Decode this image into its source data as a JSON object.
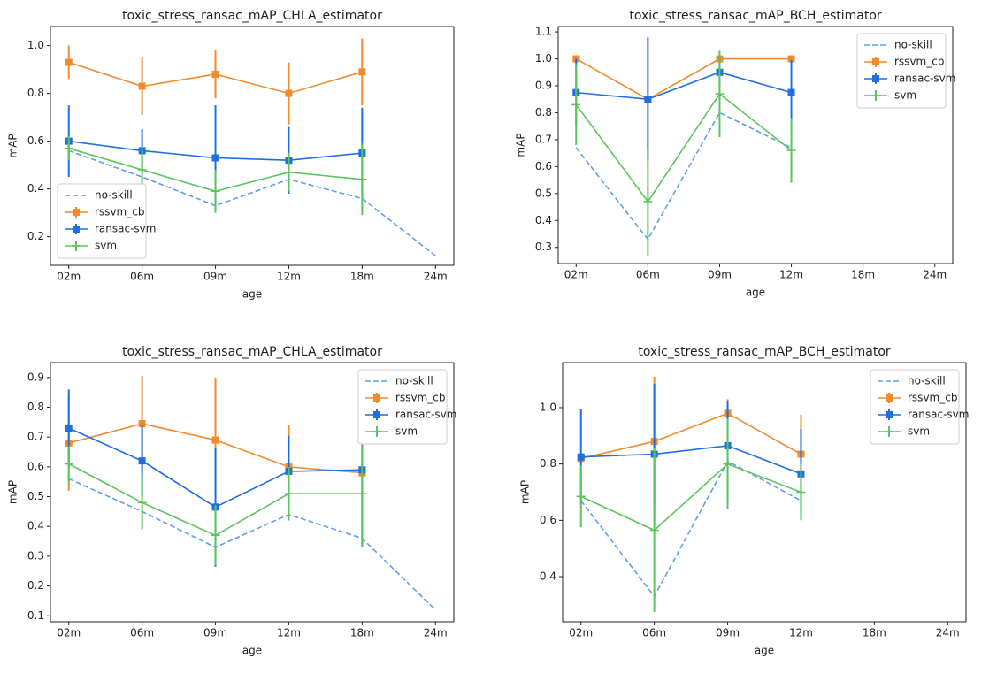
{
  "chart_data": [
    {
      "type": "line",
      "title": "toxic_stress_ransac_mAP_CHLA_estimator",
      "x_label": "age",
      "y_label": "mAP",
      "categories": [
        "02m",
        "06m",
        "09m",
        "12m",
        "18m",
        "24m"
      ],
      "ylim": [
        0.08,
        1.08
      ],
      "yticks": [
        0.2,
        0.4,
        0.6,
        0.8,
        {
          "value": 1,
          "label": "1.0"
        }
      ],
      "legend": "lower left",
      "series": [
        {
          "name": "no-skill",
          "color": "#5f9fe8",
          "linestyle": "dashed",
          "values": [
            0.56,
            0.45,
            0.33,
            0.44,
            0.36,
            0.12
          ]
        },
        {
          "name": "rssvm_cb",
          "color": "#f28a2e",
          "marker": "square",
          "values": [
            0.93,
            0.83,
            0.88,
            0.8,
            0.89,
            null
          ],
          "errors": [
            0.07,
            0.12,
            0.1,
            0.13,
            0.14,
            null
          ]
        },
        {
          "name": "ransac-svm",
          "color": "#1f6fe0",
          "marker": "square",
          "values": [
            0.6,
            0.56,
            0.53,
            0.52,
            0.55,
            null
          ],
          "errors": [
            0.15,
            0.09,
            0.22,
            0.14,
            0.19,
            null
          ]
        },
        {
          "name": "svm",
          "color": "#5cc45c",
          "marker": "plus",
          "values": [
            0.57,
            0.48,
            0.39,
            0.47,
            0.44,
            null
          ],
          "errors": [
            0.05,
            0.09,
            0.09,
            0.08,
            0.15,
            null
          ]
        }
      ]
    },
    {
      "type": "line",
      "title": "toxic_stress_ransac_mAP_BCH_estimator",
      "x_label": "age",
      "y_label": "mAP",
      "categories": [
        "02m",
        "06m",
        "09m",
        "12m",
        "18m",
        "24m"
      ],
      "ylim": [
        0.24,
        1.12
      ],
      "yticks": [
        0.3,
        0.4,
        0.5,
        0.6,
        0.7,
        0.8,
        0.9,
        {
          "value": 1,
          "label": "1.0"
        },
        1.1
      ],
      "legend": "upper right",
      "series": [
        {
          "name": "no-skill",
          "color": "#5f9fe8",
          "linestyle": "dashed",
          "values": [
            0.67,
            0.33,
            0.8,
            0.67,
            null,
            null
          ]
        },
        {
          "name": "rssvm_cb",
          "color": "#f28a2e",
          "marker": "square",
          "values": [
            1.0,
            0.85,
            1.0,
            1.0,
            null,
            null
          ],
          "errors": [
            0,
            0,
            0,
            0,
            null,
            null
          ]
        },
        {
          "name": "ransac-svm",
          "color": "#1f6fe0",
          "marker": "square",
          "values": [
            0.875,
            0.85,
            0.95,
            0.875,
            null,
            null
          ],
          "errors": [
            0.125,
            0.23,
            0.05,
            0.12,
            null,
            null
          ]
        },
        {
          "name": "svm",
          "color": "#5cc45c",
          "marker": "plus",
          "values": [
            0.83,
            0.47,
            0.87,
            0.66,
            null,
            null
          ],
          "errors": [
            0.15,
            0.2,
            0.16,
            0.12,
            null,
            null
          ]
        }
      ]
    },
    {
      "type": "line",
      "title": "toxic_stress_ransac_mAP_CHLA_estimator",
      "x_label": "age",
      "y_label": "mAP",
      "categories": [
        "02m",
        "06m",
        "09m",
        "12m",
        "18m",
        "24m"
      ],
      "ylim": [
        0.08,
        0.95
      ],
      "yticks": [
        0.1,
        0.2,
        0.3,
        0.4,
        0.5,
        0.6,
        0.7,
        0.8,
        0.9
      ],
      "legend": "upper right",
      "series": [
        {
          "name": "no-skill",
          "color": "#5f9fe8",
          "linestyle": "dashed",
          "values": [
            0.56,
            0.45,
            0.33,
            0.44,
            0.36,
            0.12
          ]
        },
        {
          "name": "rssvm_cb",
          "color": "#f28a2e",
          "marker": "square",
          "values": [
            0.68,
            0.745,
            0.69,
            0.6,
            0.58,
            null
          ],
          "errors": [
            0.16,
            0.16,
            0.21,
            0.14,
            0,
            null
          ]
        },
        {
          "name": "ransac-svm",
          "color": "#1f6fe0",
          "marker": "square",
          "values": [
            0.73,
            0.62,
            0.465,
            0.585,
            0.59,
            null
          ],
          "errors": [
            0.13,
            0.12,
            0.2,
            0.12,
            0.26,
            null
          ]
        },
        {
          "name": "svm",
          "color": "#5cc45c",
          "marker": "plus",
          "values": [
            0.61,
            0.48,
            0.37,
            0.51,
            0.51,
            null
          ],
          "errors": [
            0.06,
            0.09,
            0.1,
            0.09,
            0.18,
            null
          ]
        }
      ]
    },
    {
      "type": "line",
      "title": "toxic_stress_ransac_mAP_BCH_estimator",
      "x_label": "age",
      "y_label": "mAP",
      "categories": [
        "02m",
        "06m",
        "09m",
        "12m",
        "18m",
        "24m"
      ],
      "ylim": [
        0.24,
        1.16
      ],
      "yticks": [
        0.4,
        0.6,
        0.8,
        {
          "value": 1,
          "label": "1.0"
        }
      ],
      "legend": "upper right",
      "series": [
        {
          "name": "no-skill",
          "color": "#5f9fe8",
          "linestyle": "dashed",
          "values": [
            0.67,
            0.33,
            0.81,
            0.67,
            null,
            null
          ]
        },
        {
          "name": "rssvm_cb",
          "color": "#f28a2e",
          "marker": "square",
          "values": [
            0.82,
            0.88,
            0.98,
            0.835,
            null,
            null
          ],
          "errors": [
            0,
            0.23,
            0.05,
            0.14,
            null,
            null
          ]
        },
        {
          "name": "ransac-svm",
          "color": "#1f6fe0",
          "marker": "square",
          "values": [
            0.825,
            0.835,
            0.865,
            0.765,
            null,
            null
          ],
          "errors": [
            0.17,
            0.25,
            0.16,
            0.16,
            null,
            null
          ]
        },
        {
          "name": "svm",
          "color": "#5cc45c",
          "marker": "plus",
          "values": [
            0.685,
            0.565,
            0.8,
            0.7,
            null,
            null
          ],
          "errors": [
            0.11,
            0.29,
            0.16,
            0.1,
            null,
            null
          ]
        }
      ]
    }
  ]
}
